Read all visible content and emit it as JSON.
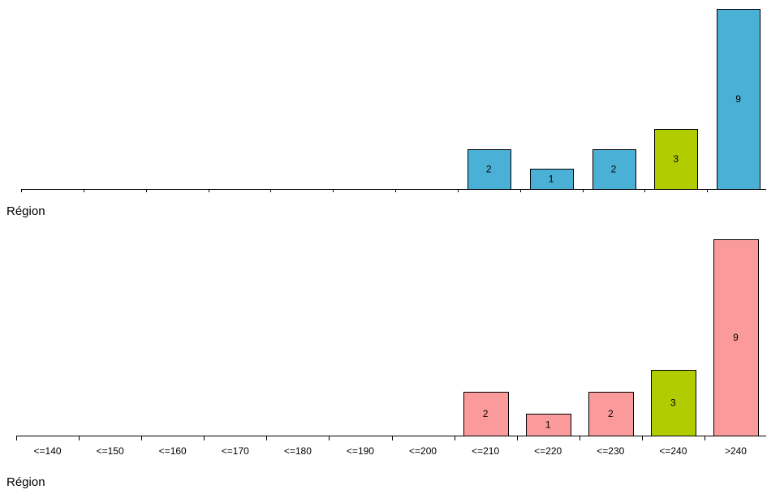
{
  "chart_data": [
    {
      "type": "bar",
      "categories": [
        "<=140",
        "<=150",
        "<=160",
        "<=170",
        "<=180",
        "<=190",
        "<=200",
        "<=210",
        "<=220",
        "<=230",
        "<=240",
        ">240"
      ],
      "values": [
        0,
        0,
        0,
        0,
        0,
        0,
        0,
        2,
        1,
        2,
        3,
        9
      ],
      "bar_colors": [
        "#4bb0d6",
        "#4bb0d6",
        "#4bb0d6",
        "#4bb0d6",
        "#4bb0d6",
        "#4bb0d6",
        "#4bb0d6",
        "#4bb0d6",
        "#4bb0d6",
        "#4bb0d6",
        "#b1cc00",
        "#4bb0d6"
      ],
      "tick_labels_visible": false,
      "label": "Région",
      "ylim": [
        0,
        9
      ]
    },
    {
      "type": "bar",
      "categories": [
        "<=140",
        "<=150",
        "<=160",
        "<=170",
        "<=180",
        "<=190",
        "<=200",
        "<=210",
        "<=220",
        "<=230",
        "<=240",
        ">240"
      ],
      "values": [
        0,
        0,
        0,
        0,
        0,
        0,
        0,
        2,
        1,
        2,
        3,
        9
      ],
      "bar_colors": [
        "#fa9a9a",
        "#fa9a9a",
        "#fa9a9a",
        "#fa9a9a",
        "#fa9a9a",
        "#fa9a9a",
        "#fa9a9a",
        "#fa9a9a",
        "#fa9a9a",
        "#fa9a9a",
        "#b1cc00",
        "#fa9a9a"
      ],
      "tick_labels_visible": true,
      "label": "Région",
      "ylim": [
        0,
        9
      ]
    }
  ]
}
